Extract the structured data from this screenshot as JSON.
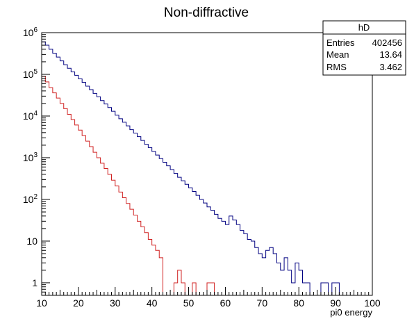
{
  "chart_data": {
    "type": "line",
    "title": "Non-diffractive",
    "xlabel": "pi0 energy",
    "ylabel": "",
    "xlim": [
      10,
      100
    ],
    "ylim": [
      0.5,
      1000000
    ],
    "yscale": "log",
    "xticks": [
      "10",
      "20",
      "30",
      "40",
      "50",
      "60",
      "70",
      "80",
      "90",
      "100"
    ],
    "yticks": [
      {
        "value": 1,
        "base": "1",
        "exp": ""
      },
      {
        "value": 10,
        "base": "10",
        "exp": ""
      },
      {
        "value": 100,
        "base": "10",
        "exp": "2"
      },
      {
        "value": 1000,
        "base": "10",
        "exp": "3"
      },
      {
        "value": 10000,
        "base": "10",
        "exp": "4"
      },
      {
        "value": 100000,
        "base": "10",
        "exp": "5"
      },
      {
        "value": 1000000,
        "base": "10",
        "exp": "6"
      }
    ],
    "bin_width": 1,
    "series": [
      {
        "color": "#000080",
        "x_start": 10,
        "values": [
          600000,
          500000,
          400000,
          320000,
          260000,
          210000,
          170000,
          140000,
          115000,
          95000,
          78000,
          64000,
          52000,
          43000,
          35000,
          29000,
          23500,
          19500,
          16000,
          13000,
          10500,
          8600,
          7100,
          5800,
          4700,
          3900,
          3200,
          2600,
          2100,
          1750,
          1420,
          1160,
          950,
          780,
          640,
          520,
          420,
          340,
          280,
          230,
          190,
          155,
          125,
          100,
          82,
          66,
          55,
          44,
          35,
          30,
          25,
          40,
          32,
          25,
          18,
          15,
          11,
          10,
          7,
          5,
          4,
          6,
          7,
          5,
          3,
          2,
          4,
          2,
          1,
          3,
          2,
          1,
          1,
          0,
          0,
          0,
          1,
          1,
          0,
          1,
          1,
          0,
          0,
          0,
          0,
          0,
          0,
          0,
          0,
          0
        ]
      },
      {
        "color": "#d02020",
        "x_start": 10,
        "values": [
          90000,
          66000,
          48000,
          36000,
          27000,
          20000,
          15000,
          11000,
          8200,
          6100,
          4600,
          3400,
          2500,
          1850,
          1350,
          1000,
          740,
          550,
          400,
          290,
          210,
          150,
          110,
          80,
          58,
          42,
          30,
          22,
          16,
          11,
          8,
          6,
          4,
          0,
          0,
          0,
          1,
          2,
          1,
          0,
          0,
          1,
          0,
          0,
          0,
          1,
          1,
          0,
          0,
          0,
          0,
          0,
          0,
          0,
          0,
          0,
          0,
          0,
          0,
          0,
          0,
          0,
          0,
          0,
          0,
          0,
          0,
          0,
          0,
          0,
          0,
          0,
          0,
          0,
          0,
          0,
          0,
          0,
          0,
          0,
          0,
          0,
          0,
          0,
          0,
          0,
          0,
          0,
          0,
          0
        ]
      }
    ],
    "stats_box": {
      "name": "hD",
      "rows": [
        {
          "label": "Entries",
          "value": "402456"
        },
        {
          "label": "Mean",
          "value": "13.64"
        },
        {
          "label": "RMS",
          "value": "3.462"
        }
      ]
    }
  }
}
